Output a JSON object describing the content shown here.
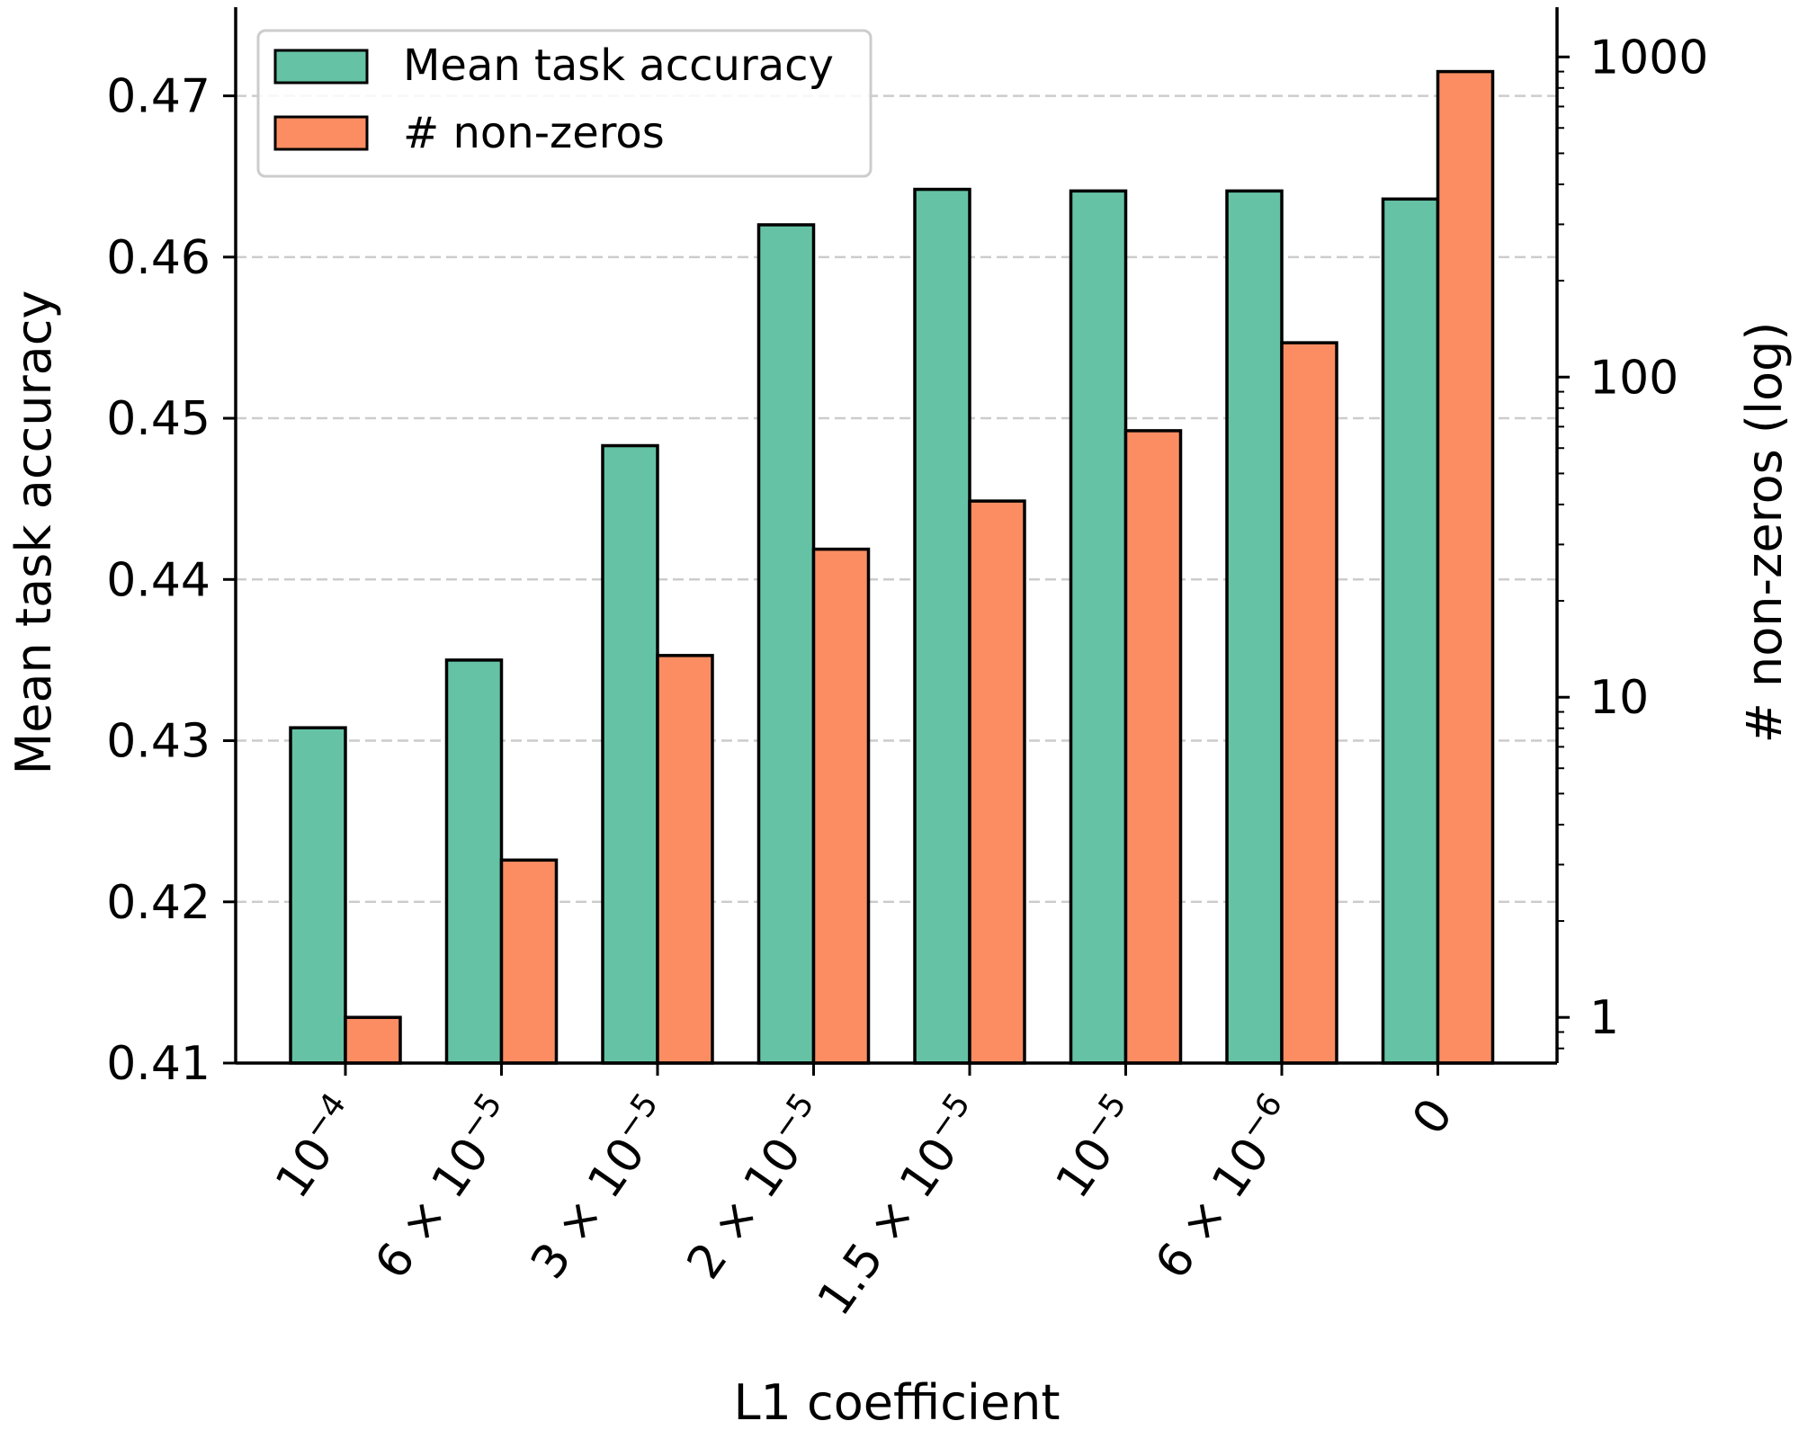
{
  "chart_data": {
    "type": "bar",
    "xlabel": "L1 coefficient",
    "ylabel_left": "Mean task accuracy",
    "ylabel_right": "# non-zeros (log)",
    "categories": [
      {
        "base": "10",
        "exp": "−4"
      },
      {
        "base": "6 × 10",
        "exp": "−5"
      },
      {
        "base": "3 × 10",
        "exp": "−5"
      },
      {
        "base": "2 × 10",
        "exp": "−5"
      },
      {
        "base": "1.5 × 10",
        "exp": "−5"
      },
      {
        "base": "10",
        "exp": "−5"
      },
      {
        "base": "6 × 10",
        "exp": "−6"
      },
      {
        "base": "0",
        "exp": ""
      }
    ],
    "series": [
      {
        "name": "Mean task accuracy",
        "axis": "left",
        "color": "#66c2a5",
        "values": [
          0.4308,
          0.435,
          0.4483,
          0.462,
          0.4642,
          0.4641,
          0.4641,
          0.4636
        ]
      },
      {
        "name": "# non-zeros",
        "axis": "right",
        "color": "#fc8d62",
        "values": [
          1,
          3.1,
          13.5,
          29,
          41,
          68,
          128,
          900
        ]
      }
    ],
    "y_left": {
      "lim": [
        0.41,
        0.4755
      ],
      "ticks": [
        0.41,
        0.42,
        0.43,
        0.44,
        0.45,
        0.46,
        0.47
      ],
      "tick_labels": [
        "0.41",
        "0.42",
        "0.43",
        "0.44",
        "0.45",
        "0.46",
        "0.47"
      ]
    },
    "y_right": {
      "scale": "log",
      "lim": [
        0.72,
        1430
      ],
      "major_ticks": [
        1,
        10,
        100,
        1000
      ],
      "tick_labels": [
        "1",
        "10",
        "100",
        "1000"
      ]
    },
    "grid": "horizontal dashed",
    "legend": "top-left",
    "bar_edge_color": "#000000"
  }
}
